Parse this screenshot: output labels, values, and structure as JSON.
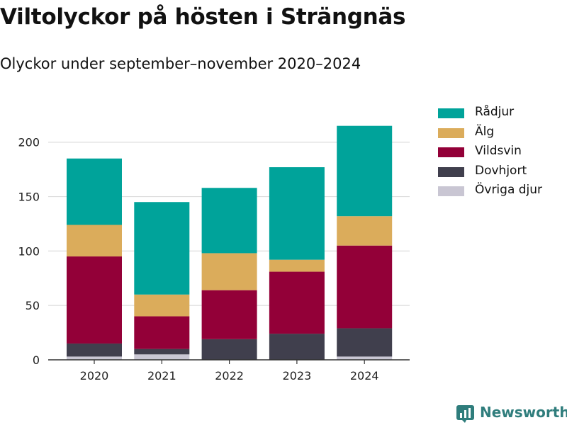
{
  "header": {
    "title": "Viltolyckor på hösten i Strängnäs",
    "subtitle": "Olyckor under september–november 2020–2024"
  },
  "brand": {
    "name": "Newsworthy",
    "color": "#2f7d7c"
  },
  "chart_data": {
    "type": "bar",
    "stacked": true,
    "title": "Viltolyckor på hösten i Strängnäs",
    "subtitle": "Olyckor under september–november 2020–2024",
    "xlabel": "",
    "ylabel": "",
    "categories": [
      "2020",
      "2021",
      "2022",
      "2023",
      "2024"
    ],
    "ylim": [
      0,
      220
    ],
    "yticks": [
      0,
      50,
      100,
      150,
      200
    ],
    "grid": true,
    "legend_position": "right",
    "series": [
      {
        "name": "Övriga djur",
        "color": "#c9c6d3",
        "values": [
          3,
          5,
          0,
          0,
          3
        ]
      },
      {
        "name": "Dovhjort",
        "color": "#403f4d",
        "values": [
          12,
          5,
          19,
          24,
          26
        ]
      },
      {
        "name": "Vildsvin",
        "color": "#930038",
        "values": [
          80,
          30,
          45,
          57,
          76
        ]
      },
      {
        "name": "Älg",
        "color": "#dbac5b",
        "values": [
          29,
          20,
          34,
          11,
          27
        ]
      },
      {
        "name": "Rådjur",
        "color": "#00a39a",
        "values": [
          61,
          85,
          60,
          85,
          83
        ]
      }
    ],
    "legend_order": [
      "Rådjur",
      "Älg",
      "Vildsvin",
      "Dovhjort",
      "Övriga djur"
    ]
  }
}
